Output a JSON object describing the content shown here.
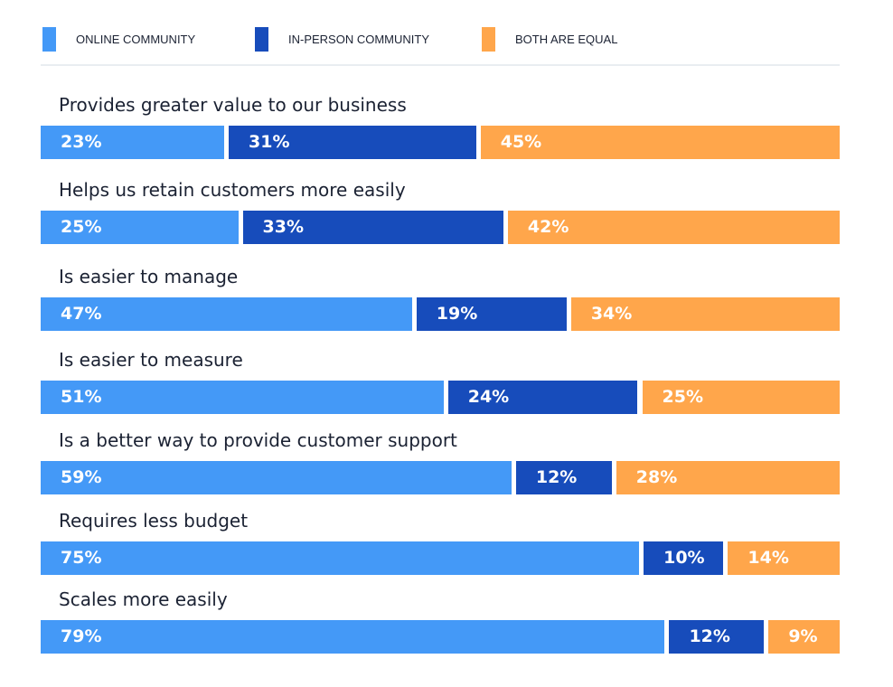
{
  "chart_data": {
    "type": "bar",
    "orientation": "horizontal",
    "stacked": true,
    "categories": [
      "Provides greater value to our business",
      "Helps us retain customers more easily",
      "Is easier to manage",
      "Is easier to measure",
      "Is a better way to provide customer support",
      "Requires less budget",
      "Scales more easily"
    ],
    "series": [
      {
        "name": "ONLINE COMMUNITY",
        "color": "#4499f7",
        "values": [
          23,
          25,
          47,
          51,
          59,
          75,
          79
        ]
      },
      {
        "name": "IN-PERSON COMMUNITY",
        "color": "#174cbb",
        "values": [
          31,
          33,
          19,
          24,
          12,
          10,
          12
        ]
      },
      {
        "name": "BOTH ARE EQUAL",
        "color": "#ffa64b",
        "values": [
          45,
          42,
          34,
          25,
          28,
          14,
          9
        ]
      }
    ],
    "value_suffix": "%",
    "legend": "top",
    "grid": false
  }
}
